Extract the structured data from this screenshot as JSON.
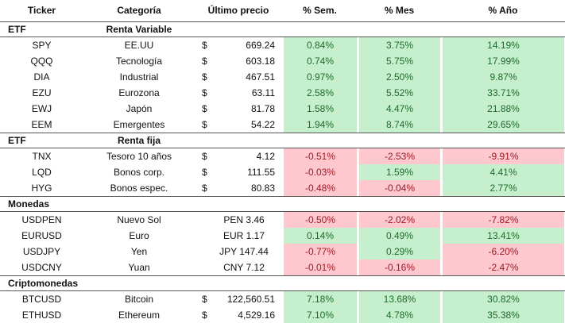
{
  "table": {
    "headers": [
      "Ticker",
      "Categoría",
      "Último precio",
      "% Sem.",
      "% Mes",
      "% Año"
    ],
    "sections": [
      {
        "label": "ETF",
        "sublabel": "Renta Variable",
        "rows": [
          {
            "ticker": "SPY",
            "category": "EE.UU",
            "currency": "$",
            "price": "669.24",
            "sem": "0.84%",
            "mes": "3.75%",
            "ano": "14.19%"
          },
          {
            "ticker": "QQQ",
            "category": "Tecnología",
            "currency": "$",
            "price": "603.18",
            "sem": "0.74%",
            "mes": "5.75%",
            "ano": "17.99%"
          },
          {
            "ticker": "DIA",
            "category": "Industrial",
            "currency": "$",
            "price": "467.51",
            "sem": "0.97%",
            "mes": "2.50%",
            "ano": "9.87%"
          },
          {
            "ticker": "EZU",
            "category": "Eurozona",
            "currency": "$",
            "price": "63.11",
            "sem": "2.58%",
            "mes": "5.52%",
            "ano": "33.71%"
          },
          {
            "ticker": "EWJ",
            "category": "Japón",
            "currency": "$",
            "price": "81.78",
            "sem": "1.58%",
            "mes": "4.47%",
            "ano": "21.88%"
          },
          {
            "ticker": "EEM",
            "category": "Emergentes",
            "currency": "$",
            "price": "54.22",
            "sem": "1.94%",
            "mes": "8.74%",
            "ano": "29.65%"
          }
        ]
      },
      {
        "label": "ETF",
        "sublabel": "Renta fija",
        "rows": [
          {
            "ticker": "TNX",
            "category": "Tesoro 10 años",
            "currency": "$",
            "price": "4.12",
            "sem": "-0.51%",
            "mes": "-2.53%",
            "ano": "-9.91%"
          },
          {
            "ticker": "LQD",
            "category": "Bonos corp.",
            "currency": "$",
            "price": "111.55",
            "sem": "-0.03%",
            "mes": "1.59%",
            "ano": "4.41%"
          },
          {
            "ticker": "HYG",
            "category": "Bonos espec.",
            "currency": "$",
            "price": "80.83",
            "sem": "-0.48%",
            "mes": "-0.04%",
            "ano": "2.77%"
          }
        ]
      },
      {
        "label": "Monedas",
        "rows": [
          {
            "ticker": "USDPEN",
            "category": "Nuevo Sol",
            "price": "PEN 3.46",
            "sem": "-0.50%",
            "mes": "-2.02%",
            "ano": "-7.82%"
          },
          {
            "ticker": "EURUSD",
            "category": "Euro",
            "price": "EUR 1.17",
            "sem": "0.14%",
            "mes": "0.49%",
            "ano": "13.41%"
          },
          {
            "ticker": "USDJPY",
            "category": "Yen",
            "price": "JPY 147.44",
            "sem": "-0.77%",
            "mes": "0.29%",
            "ano": "-6.20%"
          },
          {
            "ticker": "USDCNY",
            "category": "Yuan",
            "price": "CNY 7.12",
            "sem": "-0.01%",
            "mes": "-0.16%",
            "ano": "-2.47%"
          }
        ]
      },
      {
        "label": "Criptomonedas",
        "rows": [
          {
            "ticker": "BTCUSD",
            "category": "Bitcoin",
            "currency": "$",
            "price": "122,560.51",
            "sem": "7.18%",
            "mes": "13.68%",
            "ano": "30.82%"
          },
          {
            "ticker": "ETHUSD",
            "category": "Ethereum",
            "currency": "$",
            "price": "4,529.16",
            "sem": "7.10%",
            "mes": "4.78%",
            "ano": "35.38%"
          }
        ]
      }
    ]
  }
}
